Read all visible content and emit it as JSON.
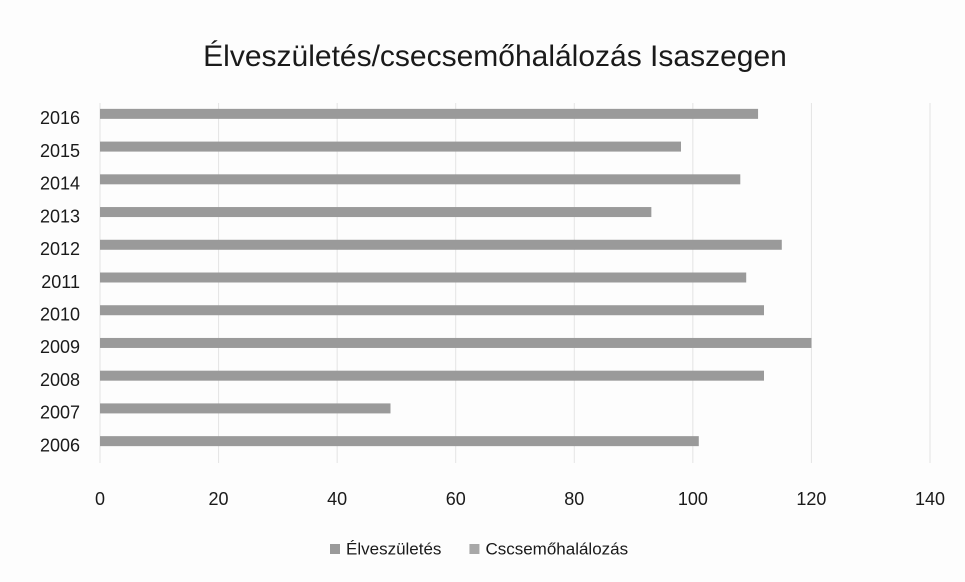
{
  "chart_data": {
    "type": "bar",
    "orientation": "horizontal",
    "title": "Élveszületés/csecsemőhalálozás Isaszegen",
    "categories": [
      "2006",
      "2007",
      "2008",
      "2009",
      "2010",
      "2011",
      "2012",
      "2013",
      "2014",
      "2015",
      "2016"
    ],
    "series": [
      {
        "name": "Élveszületés",
        "color": "#9a9a9a",
        "values": [
          101,
          49,
          112,
          120,
          112,
          109,
          115,
          93,
          108,
          98,
          111
        ]
      },
      {
        "name": "Cscsemőhalálozás",
        "color": "#a8a8a8",
        "values": [
          0,
          0,
          0,
          0,
          0,
          0,
          0,
          0,
          0,
          0,
          0
        ]
      }
    ],
    "xlim": [
      0,
      140
    ],
    "xticks": [
      0,
      20,
      40,
      60,
      80,
      100,
      120,
      140
    ],
    "grid": true,
    "legend": "bottom"
  }
}
